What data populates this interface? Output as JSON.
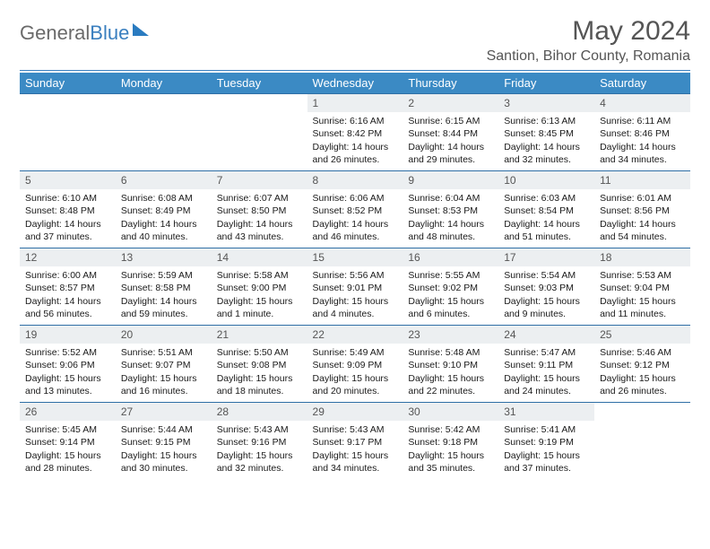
{
  "logo": {
    "text1": "General",
    "text2": "Blue"
  },
  "title": "May 2024",
  "location": "Santion, Bihor County, Romania",
  "colors": {
    "header_bg": "#3b8ac4",
    "header_text": "#ffffff",
    "rule": "#2f6fa6",
    "daynum_bg": "#eceff1",
    "body_text": "#1a1a1a",
    "page_bg": "#ffffff"
  },
  "weekdays": [
    "Sunday",
    "Monday",
    "Tuesday",
    "Wednesday",
    "Thursday",
    "Friday",
    "Saturday"
  ],
  "weeks": [
    [
      null,
      null,
      null,
      {
        "n": "1",
        "sr": "6:16 AM",
        "ss": "8:42 PM",
        "dl": "14 hours and 26 minutes."
      },
      {
        "n": "2",
        "sr": "6:15 AM",
        "ss": "8:44 PM",
        "dl": "14 hours and 29 minutes."
      },
      {
        "n": "3",
        "sr": "6:13 AM",
        "ss": "8:45 PM",
        "dl": "14 hours and 32 minutes."
      },
      {
        "n": "4",
        "sr": "6:11 AM",
        "ss": "8:46 PM",
        "dl": "14 hours and 34 minutes."
      }
    ],
    [
      {
        "n": "5",
        "sr": "6:10 AM",
        "ss": "8:48 PM",
        "dl": "14 hours and 37 minutes."
      },
      {
        "n": "6",
        "sr": "6:08 AM",
        "ss": "8:49 PM",
        "dl": "14 hours and 40 minutes."
      },
      {
        "n": "7",
        "sr": "6:07 AM",
        "ss": "8:50 PM",
        "dl": "14 hours and 43 minutes."
      },
      {
        "n": "8",
        "sr": "6:06 AM",
        "ss": "8:52 PM",
        "dl": "14 hours and 46 minutes."
      },
      {
        "n": "9",
        "sr": "6:04 AM",
        "ss": "8:53 PM",
        "dl": "14 hours and 48 minutes."
      },
      {
        "n": "10",
        "sr": "6:03 AM",
        "ss": "8:54 PM",
        "dl": "14 hours and 51 minutes."
      },
      {
        "n": "11",
        "sr": "6:01 AM",
        "ss": "8:56 PM",
        "dl": "14 hours and 54 minutes."
      }
    ],
    [
      {
        "n": "12",
        "sr": "6:00 AM",
        "ss": "8:57 PM",
        "dl": "14 hours and 56 minutes."
      },
      {
        "n": "13",
        "sr": "5:59 AM",
        "ss": "8:58 PM",
        "dl": "14 hours and 59 minutes."
      },
      {
        "n": "14",
        "sr": "5:58 AM",
        "ss": "9:00 PM",
        "dl": "15 hours and 1 minute."
      },
      {
        "n": "15",
        "sr": "5:56 AM",
        "ss": "9:01 PM",
        "dl": "15 hours and 4 minutes."
      },
      {
        "n": "16",
        "sr": "5:55 AM",
        "ss": "9:02 PM",
        "dl": "15 hours and 6 minutes."
      },
      {
        "n": "17",
        "sr": "5:54 AM",
        "ss": "9:03 PM",
        "dl": "15 hours and 9 minutes."
      },
      {
        "n": "18",
        "sr": "5:53 AM",
        "ss": "9:04 PM",
        "dl": "15 hours and 11 minutes."
      }
    ],
    [
      {
        "n": "19",
        "sr": "5:52 AM",
        "ss": "9:06 PM",
        "dl": "15 hours and 13 minutes."
      },
      {
        "n": "20",
        "sr": "5:51 AM",
        "ss": "9:07 PM",
        "dl": "15 hours and 16 minutes."
      },
      {
        "n": "21",
        "sr": "5:50 AM",
        "ss": "9:08 PM",
        "dl": "15 hours and 18 minutes."
      },
      {
        "n": "22",
        "sr": "5:49 AM",
        "ss": "9:09 PM",
        "dl": "15 hours and 20 minutes."
      },
      {
        "n": "23",
        "sr": "5:48 AM",
        "ss": "9:10 PM",
        "dl": "15 hours and 22 minutes."
      },
      {
        "n": "24",
        "sr": "5:47 AM",
        "ss": "9:11 PM",
        "dl": "15 hours and 24 minutes."
      },
      {
        "n": "25",
        "sr": "5:46 AM",
        "ss": "9:12 PM",
        "dl": "15 hours and 26 minutes."
      }
    ],
    [
      {
        "n": "26",
        "sr": "5:45 AM",
        "ss": "9:14 PM",
        "dl": "15 hours and 28 minutes."
      },
      {
        "n": "27",
        "sr": "5:44 AM",
        "ss": "9:15 PM",
        "dl": "15 hours and 30 minutes."
      },
      {
        "n": "28",
        "sr": "5:43 AM",
        "ss": "9:16 PM",
        "dl": "15 hours and 32 minutes."
      },
      {
        "n": "29",
        "sr": "5:43 AM",
        "ss": "9:17 PM",
        "dl": "15 hours and 34 minutes."
      },
      {
        "n": "30",
        "sr": "5:42 AM",
        "ss": "9:18 PM",
        "dl": "15 hours and 35 minutes."
      },
      {
        "n": "31",
        "sr": "5:41 AM",
        "ss": "9:19 PM",
        "dl": "15 hours and 37 minutes."
      },
      null
    ]
  ],
  "labels": {
    "sunrise": "Sunrise:",
    "sunset": "Sunset:",
    "daylight": "Daylight:"
  }
}
